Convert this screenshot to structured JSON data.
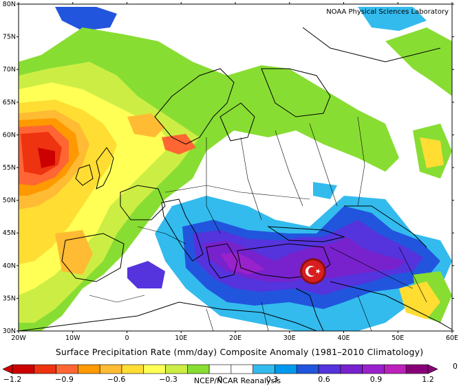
{
  "header": {
    "credit": "NOAA Physical Sciences Laboratory"
  },
  "map": {
    "region": "Europe, North Africa, Middle East",
    "projection": "lat-lon",
    "lat_labels": [
      "80N",
      "75N",
      "70N",
      "65N",
      "60N",
      "55N",
      "50N",
      "45N",
      "40N",
      "35N",
      "30N"
    ],
    "lon_labels": [
      "20W",
      "10W",
      "0",
      "10E",
      "20E",
      "30E",
      "40E",
      "50E",
      "60E"
    ],
    "marker_icon": "turkey-flag-icon"
  },
  "caption": "Surface Precipitation Rate (mm/day) Composite Anomaly (1981–2010 Climatology)",
  "colorbar": {
    "labels": [
      "−1.2",
      "−0.9",
      "−0.6",
      "−0.3",
      "0",
      "0.3",
      "0.6",
      "0.9",
      "1.2"
    ],
    "colors": [
      "#cc0000",
      "#ee3311",
      "#ff6633",
      "#ff9900",
      "#ffbb33",
      "#ffdd33",
      "#ffff55",
      "#ccee44",
      "#88dd33",
      "#ffffff",
      "#ffffff",
      "#33bbee",
      "#0099ee",
      "#2255dd",
      "#5533dd",
      "#7722cc",
      "#9922cc",
      "#bb22bb",
      "#880077"
    ],
    "overlay_text": "NCEP/NCAR Reanalysis",
    "corner_text": "0"
  }
}
